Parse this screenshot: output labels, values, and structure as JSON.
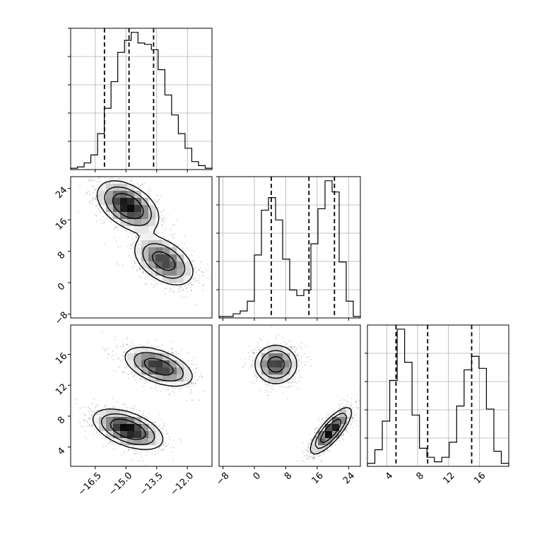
{
  "chart_data": {
    "type": "corner",
    "parameters": [
      "",
      "",
      ""
    ],
    "grid": true,
    "ranges": [
      [
        -17.7,
        -10.8
      ],
      [
        -9,
        27
      ],
      [
        1.5,
        19.8
      ]
    ],
    "ticks": [
      [
        "−16.5",
        "−15.0",
        "−13.5",
        "−12.0"
      ],
      [
        "−8",
        "0",
        "8",
        "16",
        "24"
      ],
      [
        "4",
        "8",
        "12",
        "16"
      ]
    ],
    "tick_values": [
      [
        -16.5,
        -15.0,
        -13.5,
        -12.0
      ],
      [
        -8,
        0,
        8,
        16,
        24
      ],
      [
        4,
        8,
        12,
        16
      ]
    ],
    "histograms": [
      {
        "param": 0,
        "bin_edges": [
          -17.7,
          -10.8
        ],
        "counts": [
          1,
          2,
          5,
          11,
          27,
          46,
          66,
          88,
          97,
          103,
          95,
          94,
          90,
          75,
          56,
          41,
          27,
          16,
          6,
          3,
          1
        ],
        "quantiles": [
          -16.05,
          -14.85,
          -13.65
        ]
      },
      {
        "param": 1,
        "bin_edges": [
          -9,
          27
        ],
        "counts": [
          1,
          1,
          3,
          5,
          12,
          45,
          77,
          86,
          70,
          42,
          20,
          16,
          20,
          53,
          78,
          98,
          90,
          40,
          12,
          1
        ],
        "quantiles": [
          4.3,
          13.9,
          20.4
        ]
      },
      {
        "param": 2,
        "bin_edges": [
          1.5,
          19.8
        ],
        "counts": [
          2,
          11,
          30,
          57,
          91,
          69,
          34,
          12,
          6,
          3,
          6,
          16,
          40,
          64,
          73,
          65,
          38,
          10,
          2
        ],
        "quantiles": [
          5.2,
          9.3,
          15.0
        ]
      }
    ],
    "joint_modes": [
      {
        "x": 0,
        "y": 1,
        "modes": [
          {
            "cx": -14.9,
            "cy": 19.5,
            "sx": 0.75,
            "sy": 3.2,
            "rho": -0.45,
            "w": 1.0
          },
          {
            "cx": -13.15,
            "cy": 5.5,
            "sx": 0.75,
            "sy": 3.2,
            "rho": -0.45,
            "w": 0.8
          }
        ]
      },
      {
        "x": 0,
        "y": 2,
        "modes": [
          {
            "cx": -14.9,
            "cy": 6.3,
            "sx": 0.85,
            "sy": 1.3,
            "rho": -0.5,
            "w": 1.0
          },
          {
            "cx": -13.4,
            "cy": 14.4,
            "sx": 0.85,
            "sy": 1.3,
            "rho": -0.5,
            "w": 0.85
          }
        ]
      },
      {
        "x": 1,
        "y": 2,
        "modes": [
          {
            "cx": 5.5,
            "cy": 14.7,
            "sx": 2.8,
            "sy": 1.3,
            "rho": 0.0,
            "w": 0.8
          },
          {
            "cx": 19.5,
            "cy": 6.1,
            "sx": 2.6,
            "sy": 1.5,
            "rho": 0.8,
            "w": 1.0
          }
        ]
      }
    ]
  }
}
